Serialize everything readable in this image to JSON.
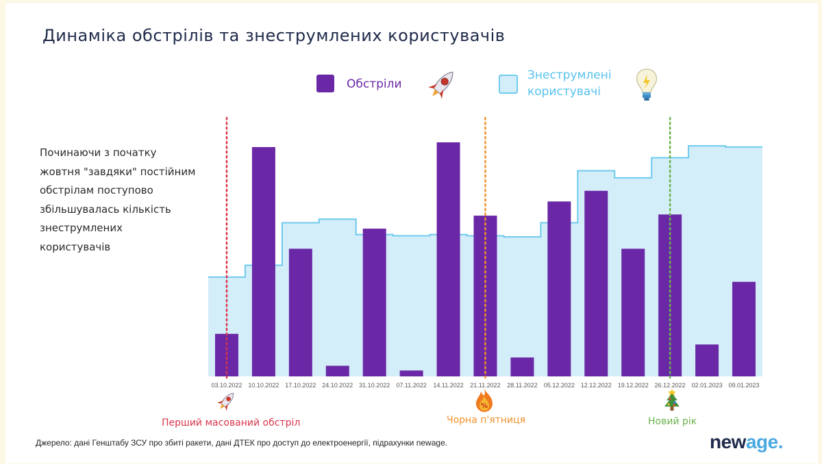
{
  "title": "Динаміка обстрілів та знеструмлених користувачів",
  "note_lines": [
    "Починаючи з початку",
    "жовтня \"завдяки\" постійним",
    "обстрілам поступово",
    "збільшувалась кількість",
    "знеструмлених",
    "користувачів"
  ],
  "legend": {
    "attacks": "Обстріли",
    "outages_line1": "Знеструмлені",
    "outages_line2": "користувачі",
    "attacks_icon": "rocket-icon",
    "outages_icon": "lightbulb-icon"
  },
  "events": {
    "first": "Перший масований обстріл",
    "black_friday": "Чорна п'ятниця",
    "new_year": "Новий рік",
    "first_icon": "rocket-icon",
    "black_friday_icon": "fire-discount-icon",
    "new_year_icon": "christmas-tree-icon"
  },
  "source": "Джерело: дані Генштабу ЗСУ про збиті ракети, дані ДТЕК про доступ до електроенергії, підрахунки newage.",
  "logo": {
    "part1": "new",
    "part2": "age",
    "dot": "."
  },
  "colors": {
    "bar": "#6a28a6",
    "area_fill": "#d4eef9",
    "area_line": "#6dcaee",
    "first_event": "#d9344a",
    "black_friday": "#f0912b",
    "new_year": "#6bb24e",
    "title": "#1f2a4a",
    "logo_dark": "#1f2a4a",
    "logo_accent": "#4aa9e0"
  },
  "chart_data": {
    "type": "bar",
    "categories": [
      "03.10.2022",
      "10.10.2022",
      "17.10.2022",
      "24.10.2022",
      "31.10.2022",
      "07.11.2022",
      "14.11.2022",
      "21.11.2022",
      "28.11.2022",
      "05.12.2022",
      "12.12.2022",
      "19.12.2022",
      "26.12.2022",
      "02.01.2023",
      "09.01.2023"
    ],
    "series": [
      {
        "name": "Обстріли",
        "type": "bar",
        "values": [
          18,
          97,
          54,
          4.5,
          62.5,
          2.5,
          99,
          68,
          8,
          74,
          78.5,
          54,
          68.5,
          13.5,
          40
        ]
      },
      {
        "name": "Знеструмлені користувачі",
        "type": "step-area",
        "values": [
          42,
          47,
          65,
          66.5,
          60,
          59.5,
          60,
          59.5,
          59,
          65,
          87,
          84,
          92.5,
          97.5,
          97
        ]
      }
    ],
    "ylim": [
      0,
      110
    ],
    "y_axis_shown": false,
    "grid": false,
    "legend_position": "top",
    "event_markers": [
      {
        "category": "03.10.2022",
        "label": "Перший масований обстріл",
        "color": "#d9344a"
      },
      {
        "category": "21.11.2022",
        "label": "Чорна п'ятниця",
        "color": "#f0912b"
      },
      {
        "category": "26.12.2022",
        "label": "Новий рік",
        "color": "#6bb24e"
      }
    ]
  }
}
